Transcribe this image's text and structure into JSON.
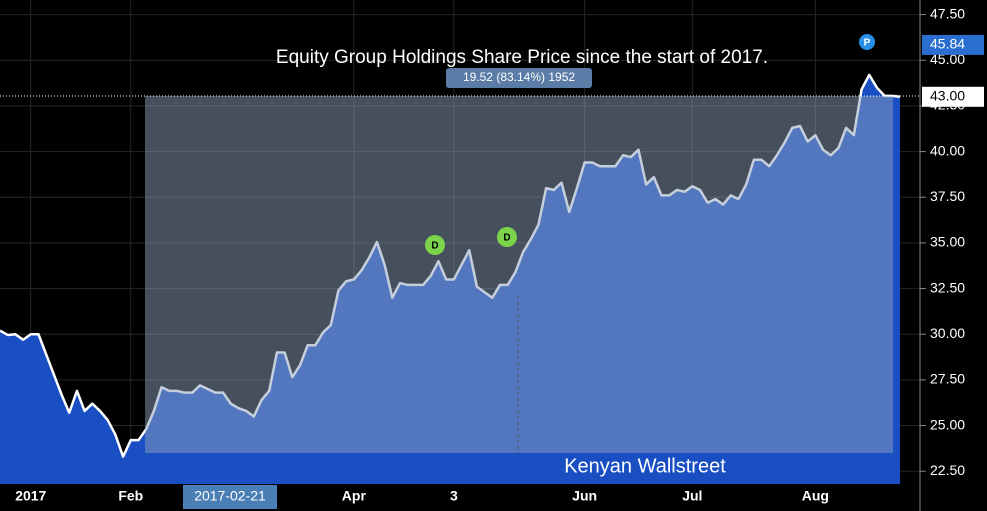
{
  "chart_data": {
    "type": "area",
    "title": "Equity Group Holdings Share Price since the start of 2017.",
    "measure_label": "19.52 (83.14%) 1952",
    "watermark": "Kenyan Wallstreet",
    "crosshair_label": "2017-02-21",
    "markers": [
      "D",
      "D",
      "P"
    ],
    "price_labels": [
      {
        "value": 45.84,
        "label": "45.84"
      },
      {
        "value": 43.0,
        "label": "43.00"
      }
    ],
    "categories": [
      null,
      null,
      null,
      null,
      "2017",
      null,
      null,
      null,
      null,
      null,
      null,
      null,
      null,
      null,
      null,
      null,
      null,
      "Feb",
      null,
      null,
      null,
      null,
      null,
      null,
      null,
      null,
      null,
      null,
      null,
      null,
      null,
      null,
      null,
      null,
      null,
      null,
      null,
      null,
      null,
      null,
      null,
      null,
      null,
      null,
      null,
      null,
      "Apr",
      null,
      null,
      null,
      null,
      null,
      null,
      null,
      null,
      null,
      null,
      null,
      null,
      "3",
      null,
      null,
      null,
      null,
      null,
      null,
      null,
      null,
      null,
      null,
      null,
      null,
      null,
      null,
      null,
      null,
      "Jun",
      null,
      null,
      null,
      null,
      null,
      null,
      null,
      null,
      null,
      null,
      null,
      null,
      null,
      "Jul",
      null,
      null,
      null,
      null,
      null,
      null,
      null,
      null,
      null,
      null,
      null,
      null,
      null,
      null,
      null,
      "Aug",
      null,
      null,
      null,
      null,
      null,
      null,
      null,
      null,
      null,
      null,
      null
    ],
    "series": [
      {
        "color": "#ffffff",
        "fill": "#1a4fc4",
        "values": [
          30.2,
          29.96,
          30.0,
          29.7,
          30.0,
          30.0,
          28.9,
          27.8,
          26.7,
          25.7,
          26.9,
          25.8,
          26.2,
          25.8,
          25.3,
          24.5,
          23.3,
          24.2,
          24.2,
          24.8,
          25.8,
          27.1,
          26.9,
          26.9,
          26.8,
          26.8,
          27.2,
          27.0,
          26.8,
          26.8,
          26.2,
          25.95,
          25.8,
          25.5,
          26.4,
          26.9,
          29.0,
          29.0,
          27.65,
          28.3,
          29.4,
          29.4,
          30.1,
          30.5,
          32.4,
          32.9,
          33.0,
          33.5,
          34.2,
          35.05,
          33.8,
          32.0,
          32.8,
          32.7,
          32.7,
          32.7,
          33.2,
          34.0,
          33.0,
          33.0,
          33.8,
          34.6,
          32.6,
          32.3,
          32.0,
          32.7,
          32.7,
          33.4,
          34.5,
          35.2,
          36.0,
          38.0,
          37.9,
          38.3,
          36.7,
          38.0,
          39.4,
          39.4,
          39.2,
          39.2,
          39.2,
          39.8,
          39.7,
          40.1,
          38.2,
          38.6,
          37.6,
          37.6,
          37.9,
          37.8,
          38.1,
          37.9,
          37.2,
          37.4,
          37.1,
          37.6,
          37.4,
          38.2,
          39.55,
          39.55,
          39.2,
          39.8,
          40.5,
          41.3,
          41.4,
          40.55,
          40.9,
          40.1,
          39.8,
          40.2,
          41.3,
          40.9,
          43.4,
          44.2,
          43.5,
          43.05,
          43.05,
          43.0
        ]
      }
    ],
    "ylim": [
      21.8,
      48.3
    ],
    "yticks": [
      {
        "value": 22.5,
        "label": "22.50"
      },
      {
        "value": 25,
        "label": "25.00"
      },
      {
        "value": 27.5,
        "label": "27.50"
      },
      {
        "value": 30,
        "label": "30.00"
      },
      {
        "value": 32.5,
        "label": "32.50"
      },
      {
        "value": 35,
        "label": "35.00"
      },
      {
        "value": 37.5,
        "label": "37.50"
      },
      {
        "value": 40,
        "label": "40.00"
      },
      {
        "value": 42.5,
        "label": "42.50"
      },
      {
        "value": 45,
        "label": "45.00"
      },
      {
        "value": 47.5,
        "label": "47.50"
      }
    ],
    "grid": true
  }
}
